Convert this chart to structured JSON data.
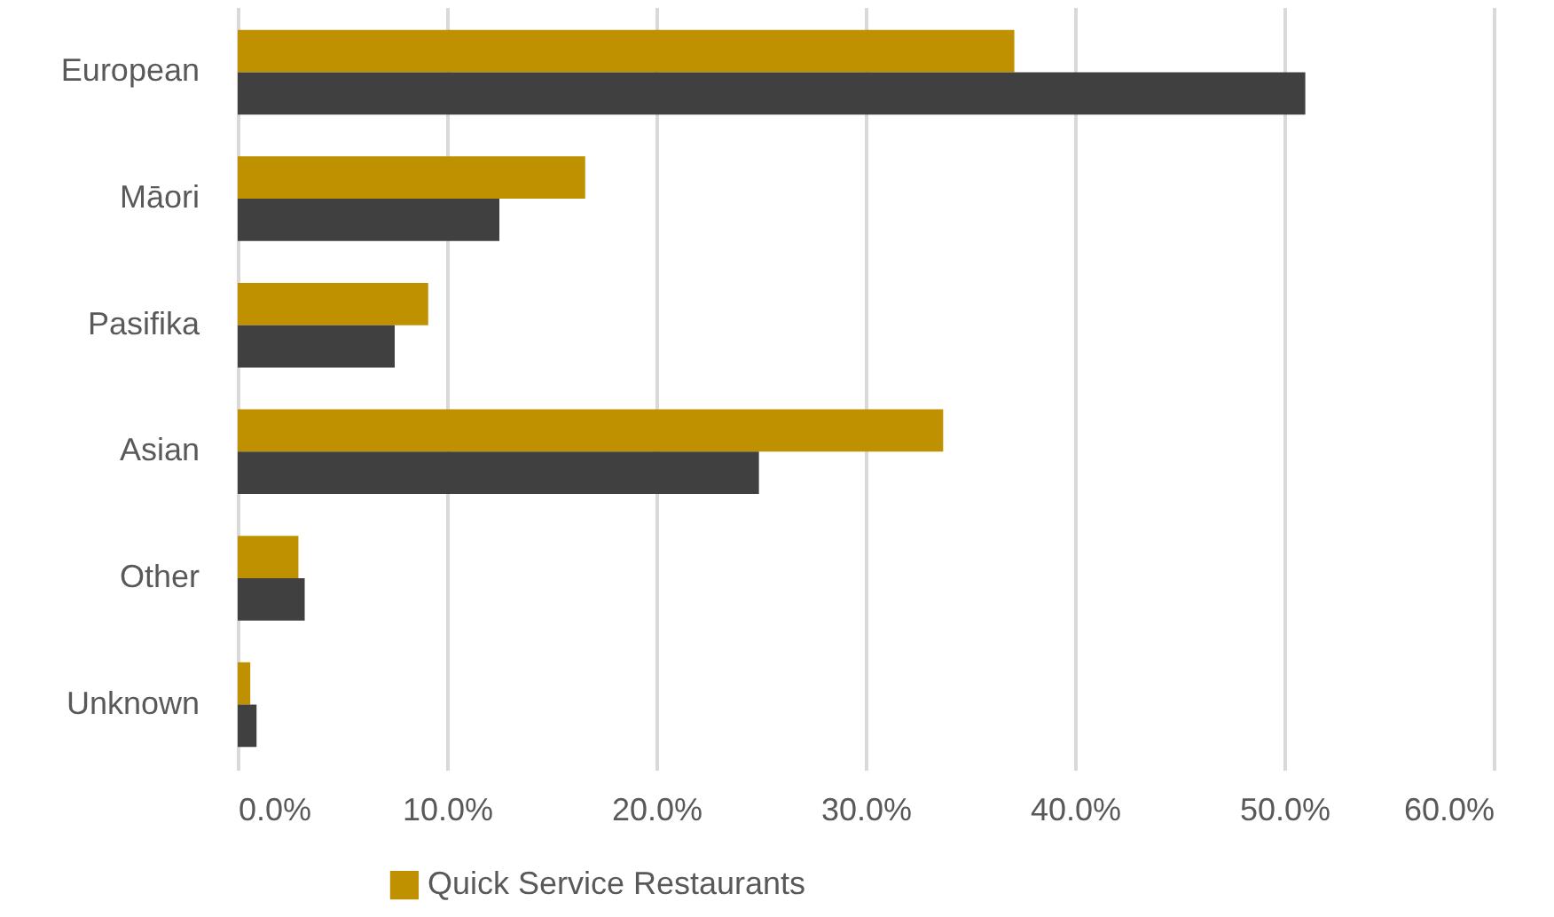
{
  "chart_data": {
    "type": "bar",
    "orientation": "horizontal",
    "categories": [
      "European",
      "Māori",
      "Pasifika",
      "Asian",
      "Other",
      "Unknown"
    ],
    "series": [
      {
        "name": "Quick Service Restaurants",
        "color": "#bf9000",
        "values": [
          37.1,
          16.6,
          9.1,
          33.7,
          2.9,
          0.6
        ]
      },
      {
        "color": "#404040",
        "values": [
          51.0,
          12.5,
          7.5,
          24.9,
          3.2,
          0.9
        ]
      }
    ],
    "xlim": [
      0,
      60
    ],
    "xticks": [
      {
        "value": 0,
        "label": "0.0%"
      },
      {
        "value": 10,
        "label": "10.0%"
      },
      {
        "value": 20,
        "label": "20.0%"
      },
      {
        "value": 30,
        "label": "30.0%"
      },
      {
        "value": 40,
        "label": "40.0%"
      },
      {
        "value": 50,
        "label": "50.0%"
      },
      {
        "value": 60,
        "label": "60.0%"
      }
    ],
    "grid": "x",
    "legend": "bottom"
  }
}
